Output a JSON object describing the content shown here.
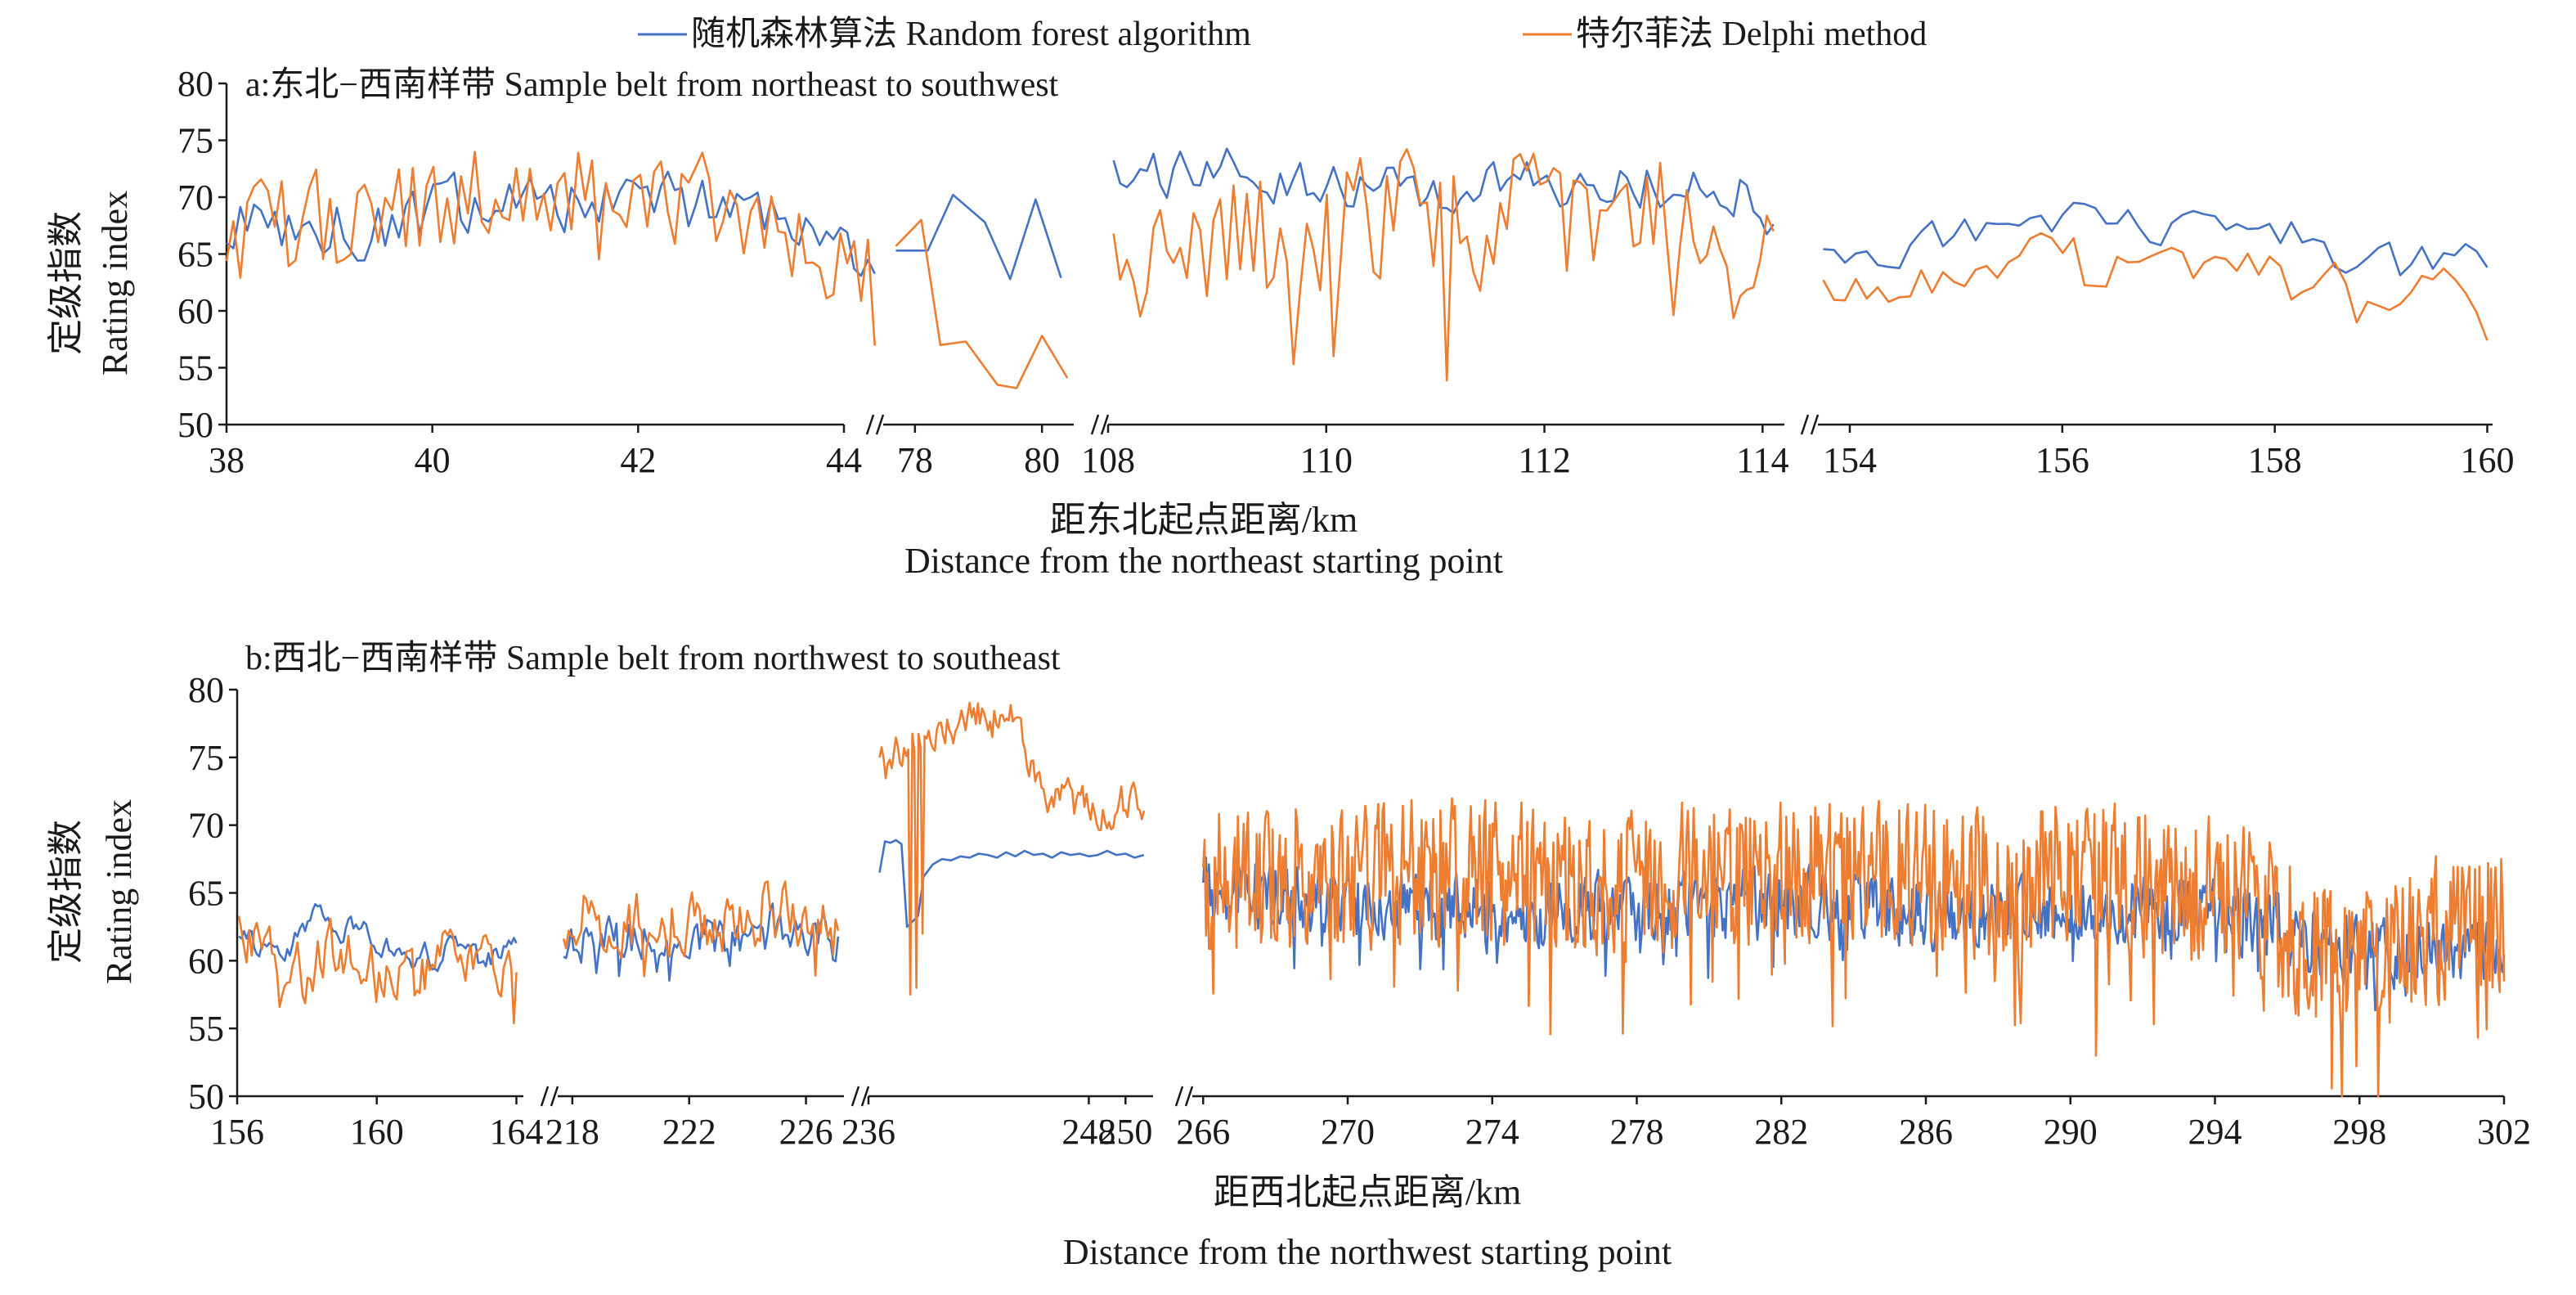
{
  "legend": [
    {
      "name": "随机森林算法 Random forest algorithm",
      "color": "#4472c4"
    },
    {
      "name": "特尔菲法 Delphi method",
      "color": "#ed7d31"
    }
  ],
  "chart_data": [
    {
      "type": "line",
      "panel_id": "a",
      "title": "a:东北−西南样带 Sample  belt from northeast to southwest",
      "ylabel_cn": "定级指数",
      "ylabel_en": "Rating index",
      "xlabel_cn": "距东北起点距离/km",
      "xlabel_en": "Distance from the northeast starting point",
      "ylim": [
        50,
        80
      ],
      "yticks": [
        50,
        55,
        60,
        65,
        70,
        75,
        80
      ],
      "grid": false,
      "legend_position": "top",
      "segments": [
        {
          "xlim": [
            38,
            44
          ],
          "xticks": [
            38,
            40,
            42,
            44
          ],
          "series": [
            {
              "name": "随机森林算法 Random forest algorithm",
              "x_range": [
                38,
                44.3
              ],
              "n": 95,
              "seed": 11,
              "base": [
                67.5,
                67.0,
                70.0,
                69.5,
                69.0,
                65.0
              ],
              "noise": 3.5,
              "smooth": 0.3
            },
            {
              "name": "特尔菲法 Delphi method",
              "x_range": [
                38,
                44.3
              ],
              "n": 95,
              "seed": 12,
              "base": [
                66.5,
                68.0,
                70.5,
                71.0,
                69.0,
                63.5
              ],
              "noise": 5.5,
              "smooth": 0.2
            }
          ]
        },
        {
          "xlim": [
            77.5,
            80.5
          ],
          "xticks": [
            78,
            80
          ],
          "series": [
            {
              "name": "随机森林算法 Random forest algorithm",
              "x": [
                77.7,
                78.2,
                78.6,
                79.1,
                79.5,
                79.9,
                80.3
              ],
              "y": [
                65.3,
                65.3,
                70.2,
                67.8,
                62.8,
                69.8,
                62.9
              ]
            },
            {
              "name": "特尔菲法 Delphi method",
              "x": [
                77.7,
                78.1,
                78.4,
                78.8,
                79.3,
                79.6,
                80.0,
                80.4
              ],
              "y": [
                65.7,
                68.0,
                57.0,
                57.3,
                53.5,
                53.2,
                57.8,
                54.1
              ]
            }
          ]
        },
        {
          "xlim": [
            108,
            114.2
          ],
          "xticks": [
            108,
            110,
            112,
            114
          ],
          "series": [
            {
              "name": "随机森林算法 Random forest algorithm",
              "x_range": [
                108.05,
                114.1
              ],
              "n": 100,
              "seed": 21,
              "base": [
                71.5,
                72.0,
                71.0,
                71.0,
                71.5,
                71.0,
                70.0
              ],
              "noise": 3.0,
              "smooth": 0.3
            },
            {
              "name": "特尔菲法 Delphi method",
              "x_range": [
                108.05,
                114.1
              ],
              "n": 100,
              "seed": 22,
              "base": [
                61.0,
                66.0,
                67.5,
                68.5,
                68.0,
                68.0,
                63.5
              ],
              "noise": 7.0,
              "smooth": 0.15
            }
          ]
        },
        {
          "xlim": [
            153.7,
            160.05
          ],
          "xticks": [
            154,
            156,
            158,
            160
          ],
          "series": [
            {
              "name": "随机森林算法 Random forest algorithm",
              "x_range": [
                153.75,
                160.0
              ],
              "n": 62,
              "seed": 31,
              "base": [
                65.0,
                66.0,
                68.5,
                67.5,
                68.0,
                64.5,
                64.0
              ],
              "noise": 3.0,
              "smooth": 0.5
            },
            {
              "name": "特尔菲法 Delphi method",
              "x_range": [
                153.75,
                160.0
              ],
              "n": 62,
              "seed": 32,
              "base": [
                62.0,
                62.5,
                65.0,
                63.5,
                64.0,
                61.5,
                61.5
              ],
              "noise": 3.0,
              "smooth": 0.45
            }
          ]
        }
      ]
    },
    {
      "type": "line",
      "panel_id": "b",
      "title": "b:西北−西南样带 Sample belt from northwest to southeast",
      "ylabel_cn": "定级指数",
      "ylabel_en": "Rating index",
      "xlabel_cn": "距西北起点距离/km",
      "xlabel_en": "Distance from the northwest starting point",
      "ylim": [
        50,
        80
      ],
      "yticks": [
        50,
        55,
        60,
        65,
        70,
        75,
        80
      ],
      "grid": false,
      "legend_position": "top",
      "segments": [
        {
          "xlim": [
            156,
            164.2
          ],
          "xticks": [
            156,
            160,
            164
          ],
          "series": [
            {
              "name": "随机森林算法 Random forest algorithm",
              "x_range": [
                156.05,
                164.0
              ],
              "n": 110,
              "seed": 41,
              "base": [
                62.0,
                61.5,
                63.5,
                61.0,
                60.5,
                61.5,
                60.5
              ],
              "noise": 2.5,
              "smooth": 0.7
            },
            {
              "name": "特尔菲法 Delphi method",
              "x_range": [
                156.05,
                164.0
              ],
              "n": 110,
              "seed": 42,
              "base": [
                63.5,
                58.5,
                61.0,
                60.0,
                60.0,
                61.0,
                59.5
              ],
              "noise": 3.5,
              "smooth": 0.5
            }
          ]
        },
        {
          "xlim": [
            217.5,
            227.3
          ],
          "xticks": [
            218,
            222,
            226
          ],
          "series": [
            {
              "name": "随机森林算法 Random forest algorithm",
              "x_range": [
                217.7,
                227.1
              ],
              "n": 110,
              "seed": 51,
              "base": [
                61.5,
                62.0,
                62.0,
                61.5,
                62.5,
                61.5
              ],
              "noise": 2.5,
              "smooth": 0.4
            },
            {
              "name": "特尔菲法 Delphi method",
              "x_range": [
                217.7,
                227.1
              ],
              "n": 110,
              "seed": 52,
              "base": [
                63.0,
                63.0,
                62.5,
                63.0,
                63.5,
                62.5
              ],
              "noise": 3.0,
              "smooth": 0.3
            }
          ]
        },
        {
          "xlim": [
            236,
            251.5
          ],
          "xticks": [
            236,
            248,
            250
          ],
          "series": [
            {
              "name": "随机森林算法 Random forest algorithm",
              "x": [
                236.6,
                236.9,
                237.2,
                237.5,
                237.8,
                238.1,
                238.4,
                238.7,
                239.0,
                239.5,
                240.0,
                240.5,
                241.0,
                241.5,
                242.0,
                242.5,
                243.0,
                243.5,
                244.0,
                244.5,
                245.0,
                245.5,
                246.0,
                246.5,
                247.0,
                247.5,
                248.0,
                248.5,
                249.0,
                249.5,
                250.0,
                250.5,
                251.0
              ],
              "y": [
                66.5,
                68.8,
                68.7,
                68.9,
                68.6,
                62.5,
                62.9,
                63.3,
                66.2,
                67.1,
                67.5,
                67.4,
                67.7,
                67.6,
                67.9,
                67.8,
                67.6,
                68.0,
                67.7,
                68.1,
                67.8,
                67.9,
                67.6,
                68.0,
                67.8,
                67.9,
                67.7,
                67.8,
                68.1,
                67.8,
                67.9,
                67.6,
                67.8
              ]
            },
            {
              "name": "特尔菲法 Delphi method",
              "x_range": [
                236.6,
                251.0
              ],
              "n": 130,
              "seed": 62,
              "base": [
                74.0,
                76.0,
                77.5,
                78.0,
                78.5,
                72.0,
                71.5,
                71.5,
                71.5
              ],
              "noise": 2.5,
              "smooth": 0.5,
              "dips": [
                [
                  238.3,
                  57.5
                ],
                [
                  238.6,
                  58.0
                ],
                [
                  238.9,
                  62.0
                ]
              ]
            }
          ]
        },
        {
          "xlim": [
            265.7,
            302.0
          ],
          "xticks": [
            266,
            270,
            274,
            278,
            282,
            286,
            290,
            294,
            298,
            302
          ],
          "series": [
            {
              "name": "随机森林算法 Random forest algorithm",
              "x_range": [
                266.0,
                302.0
              ],
              "n": 900,
              "seed": 71,
              "base": [
                65.5,
                64.5,
                64.0,
                64.0,
                63.5,
                64.0,
                64.0,
                64.5,
                64.0,
                63.5,
                64.0,
                63.5,
                64.0,
                63.0,
                61.0,
                60.5,
                61.0
              ],
              "noise": 3.0,
              "smooth": 0.2
            },
            {
              "name": "特尔菲法 Delphi method",
              "x_range": [
                266.0,
                302.0
              ],
              "n": 900,
              "seed": 72,
              "base": [
                65.5,
                66.5,
                66.0,
                66.5,
                66.0,
                65.5,
                66.0,
                66.5,
                66.5,
                66.0,
                66.0,
                66.5,
                65.5,
                64.0,
                59.0,
                62.0,
                63.0
              ],
              "noise": 6.0,
              "smooth": 0.1
            }
          ]
        }
      ]
    }
  ]
}
